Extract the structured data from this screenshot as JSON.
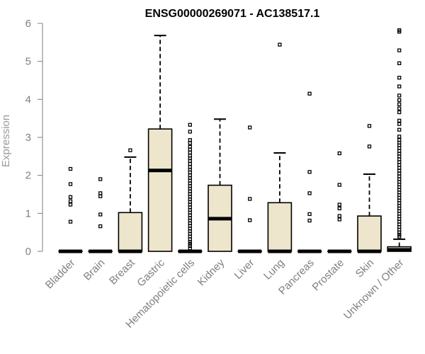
{
  "chart_data": {
    "type": "boxplot",
    "title": "ENSG00000269071 - AC138517.1",
    "ylabel": "Expression",
    "xlabel": "",
    "ylim": [
      0,
      6
    ],
    "yticks": [
      0,
      1,
      2,
      3,
      4,
      5,
      6
    ],
    "box_fill": "#ede6cc",
    "categories": [
      "Bladder",
      "Brain",
      "Breast",
      "Gastric",
      "Hematopoietic cells",
      "Kidney",
      "Liver",
      "Lung",
      "Pancreas",
      "Prostate",
      "Skin",
      "Unknown / Other"
    ],
    "series": [
      {
        "category": "Bladder",
        "q1": 0,
        "median": 0,
        "q3": 0,
        "whisker_low": 0,
        "whisker_high": 0,
        "outliers": [
          2.17,
          1.77,
          1.43,
          1.32,
          1.23,
          0.78
        ]
      },
      {
        "category": "Brain",
        "q1": 0,
        "median": 0,
        "q3": 0,
        "whisker_low": 0,
        "whisker_high": 0,
        "outliers": [
          1.9,
          1.53,
          1.45,
          0.97,
          0.66
        ]
      },
      {
        "category": "Breast",
        "q1": 0,
        "median": 0,
        "q3": 1.02,
        "whisker_low": 0,
        "whisker_high": 2.48,
        "outliers": [
          2.66
        ]
      },
      {
        "category": "Gastric",
        "q1": 0,
        "median": 2.13,
        "q3": 3.22,
        "whisker_low": 0,
        "whisker_high": 5.68,
        "outliers": []
      },
      {
        "category": "Hematopoietic cells",
        "q1": 0,
        "median": 0,
        "q3": 0,
        "whisker_low": 0,
        "whisker_high": 0,
        "outliers": [
          3.33,
          3.15,
          2.93,
          2.85,
          2.75,
          2.68,
          2.6,
          2.52,
          2.45,
          2.38,
          2.3,
          2.22,
          2.15,
          2.08,
          2.0,
          1.93,
          1.86,
          1.79,
          1.72,
          1.65,
          1.58,
          1.51,
          1.44,
          1.37,
          1.3,
          1.23,
          1.16,
          1.09,
          1.02,
          0.95,
          0.88,
          0.81,
          0.74,
          0.67,
          0.6,
          0.53,
          0.46,
          0.39,
          0.32,
          0.25,
          0.2,
          0.14,
          0.08
        ]
      },
      {
        "category": "Kidney",
        "q1": 0,
        "median": 0.86,
        "q3": 1.74,
        "whisker_low": 0,
        "whisker_high": 3.48,
        "outliers": []
      },
      {
        "category": "Liver",
        "q1": 0,
        "median": 0,
        "q3": 0,
        "whisker_low": 0,
        "whisker_high": 0,
        "outliers": [
          3.26,
          1.38,
          0.82
        ]
      },
      {
        "category": "Lung",
        "q1": 0,
        "median": 0,
        "q3": 1.28,
        "whisker_low": 0,
        "whisker_high": 2.59,
        "outliers": [
          5.44
        ]
      },
      {
        "category": "Pancreas",
        "q1": 0,
        "median": 0,
        "q3": 0,
        "whisker_low": 0,
        "whisker_high": 0,
        "outliers": [
          4.15,
          2.09,
          1.53,
          0.98,
          0.81
        ]
      },
      {
        "category": "Prostate",
        "q1": 0,
        "median": 0,
        "q3": 0,
        "whisker_low": 0,
        "whisker_high": 0,
        "outliers": [
          2.58,
          1.75,
          1.23,
          1.13,
          0.93,
          0.84
        ]
      },
      {
        "category": "Skin",
        "q1": 0,
        "median": 0,
        "q3": 0.93,
        "whisker_low": 0,
        "whisker_high": 2.03,
        "outliers": [
          3.3,
          2.76
        ]
      },
      {
        "category": "Unknown / Other",
        "q1": 0,
        "median": 0.04,
        "q3": 0.12,
        "whisker_low": 0,
        "whisker_high": 0.32,
        "outliers": [
          5.82,
          5.78,
          5.29,
          4.95,
          4.57,
          4.34,
          4.1,
          3.98,
          3.87,
          3.76,
          3.66,
          3.44,
          3.35,
          3.2,
          3.02,
          2.93,
          2.86,
          2.79,
          2.72,
          2.64,
          2.57,
          2.5,
          2.42,
          2.35,
          2.27,
          2.2,
          2.12,
          2.05,
          1.97,
          1.9,
          1.83,
          1.76,
          1.69,
          1.62,
          1.55,
          1.48,
          1.41,
          1.34,
          1.27,
          1.2,
          1.13,
          1.06,
          0.99,
          0.92,
          0.85,
          0.78,
          0.71,
          0.64,
          0.57,
          0.5,
          0.44,
          0.39
        ]
      }
    ]
  }
}
